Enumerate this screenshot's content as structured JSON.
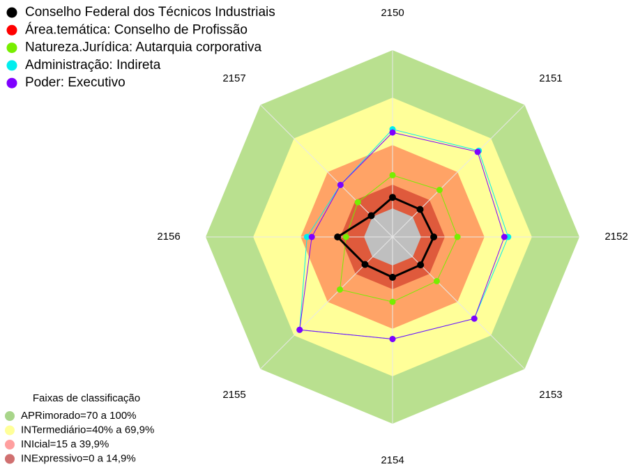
{
  "chart_data": {
    "type": "radar",
    "categories": [
      "2150",
      "2151",
      "2152",
      "2153",
      "2154",
      "2155",
      "2156",
      "2157"
    ],
    "ylim": [
      -18,
      100
    ],
    "bands_title": "Faixas de classificação",
    "bands": [
      {
        "label": "APRimorado=70 a 100%",
        "from": 70,
        "to": 100,
        "color": "#b9e08f",
        "legend_color": "#a8d58a"
      },
      {
        "label": "INTermediário=40% a 69,9%",
        "from": 40,
        "to": 70,
        "color": "#ffff99",
        "legend_color": "#ffff99"
      },
      {
        "label": "INIcial=15 a 39,9%",
        "from": 15,
        "to": 40,
        "color": "#ffa366",
        "legend_color": "#ff9f9f"
      },
      {
        "label": "INExpressivo=0 a 14,9%",
        "from": 0,
        "to": 15,
        "color": "#df5a3c",
        "legend_color": "#d07070"
      }
    ],
    "center_color": "#bfbfbf",
    "series": [
      {
        "name": "Conselho Federal dos Técnicos Industriais",
        "color": "#000000",
        "values": [
          7,
          6.6,
          8,
          7,
          7.5,
          6.6,
          16.7,
          1
        ]
      },
      {
        "name": "Área.temática: Conselho de Profissão",
        "color": "#ff0000",
        "values": [
          7,
          6.6,
          8,
          7,
          7.5,
          6.6,
          16.7,
          1
        ]
      },
      {
        "name": "Natureza.Jurídica: Autarquia corporativa",
        "color": "#77ee00",
        "values": [
          21,
          24,
          23,
          21.5,
          23,
          29,
          11.4,
          13
        ]
      },
      {
        "name": "Administração: Indireta",
        "color": "#00eeee",
        "values": [
          50,
          59,
          55,
          55,
          46.5,
          65,
          36,
          28.5
        ]
      },
      {
        "name": "Poder: Executivo",
        "color": "#7f00ff",
        "values": [
          48,
          58,
          52.6,
          55,
          46.5,
          65,
          33,
          28.5
        ]
      }
    ]
  }
}
